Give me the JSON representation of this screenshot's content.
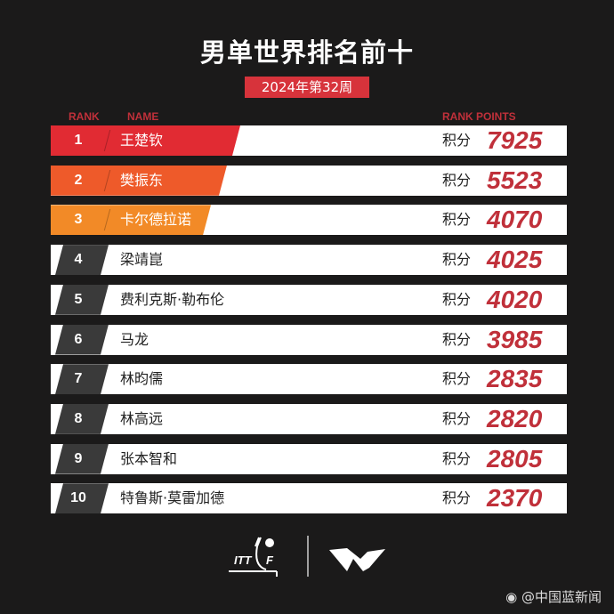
{
  "title": "男单世界排名前十",
  "week": "2024年第32周",
  "headers": {
    "rank": "RANK",
    "name": "NAME",
    "points": "RANK POINTS"
  },
  "points_label": "积分",
  "colors": {
    "rank1": "#e12b33",
    "rank2": "#ee5a2a",
    "rank3": "#f28a27",
    "rank_other": "#3a3a3a",
    "points": "#c0303a"
  },
  "rows": [
    {
      "rank": "1",
      "name": "王楚钦",
      "points": "7925"
    },
    {
      "rank": "2",
      "name": "樊振东",
      "points": "5523"
    },
    {
      "rank": "3",
      "name": "卡尔德拉诺",
      "points": "4070"
    },
    {
      "rank": "4",
      "name": "梁靖崑",
      "points": "4025"
    },
    {
      "rank": "5",
      "name": "费利克斯·勒布伦",
      "points": "4020"
    },
    {
      "rank": "6",
      "name": "马龙",
      "points": "3985"
    },
    {
      "rank": "7",
      "name": "林昀儒",
      "points": "2835"
    },
    {
      "rank": "8",
      "name": "林高远",
      "points": "2820"
    },
    {
      "rank": "9",
      "name": "张本智和",
      "points": "2805"
    },
    {
      "rank": "10",
      "name": "特鲁斯·莫雷加德",
      "points": "2370"
    }
  ],
  "logos": {
    "itf": "ITTF",
    "wtt": "WTT"
  },
  "watermark": "@中国蓝新闻"
}
